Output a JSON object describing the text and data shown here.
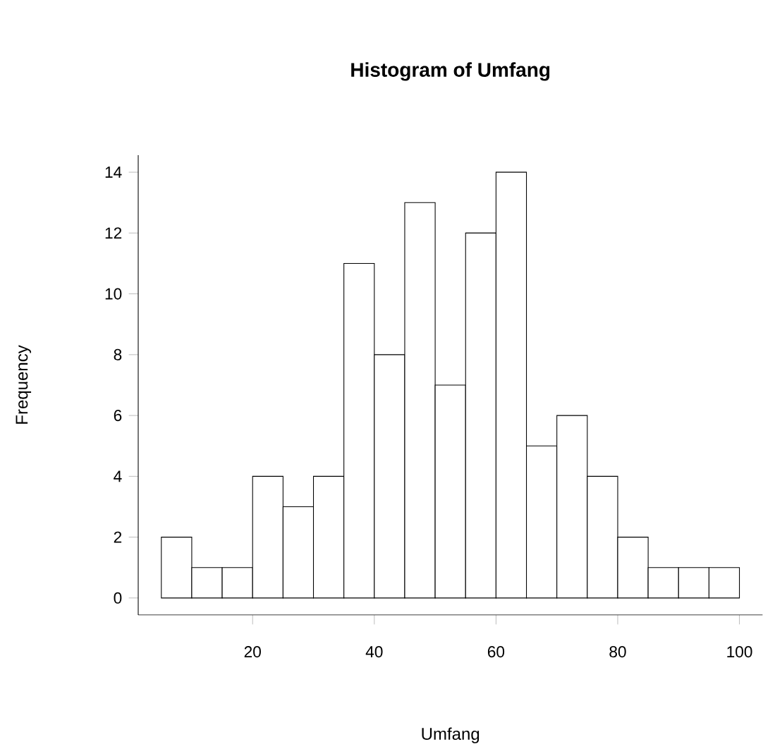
{
  "chart_data": {
    "type": "histogram",
    "title": "Histogram of Umfang",
    "xlabel": "Umfang",
    "ylabel": "Frequency",
    "bins": [
      5,
      10,
      15,
      20,
      25,
      30,
      35,
      40,
      45,
      50,
      55,
      60,
      65,
      70,
      75,
      80,
      85,
      90,
      95,
      100
    ],
    "values": [
      2,
      1,
      1,
      4,
      3,
      4,
      11,
      8,
      13,
      7,
      12,
      14,
      5,
      6,
      4,
      2,
      1,
      1,
      1
    ],
    "color": "#000000",
    "grid": false,
    "xlim": [
      1.2,
      103.8
    ],
    "ylim": [
      -0.56,
      14.56
    ],
    "xticks": [
      20,
      40,
      60,
      80,
      100
    ],
    "yticks": [
      0,
      2,
      4,
      6,
      8,
      10,
      12,
      14
    ]
  }
}
